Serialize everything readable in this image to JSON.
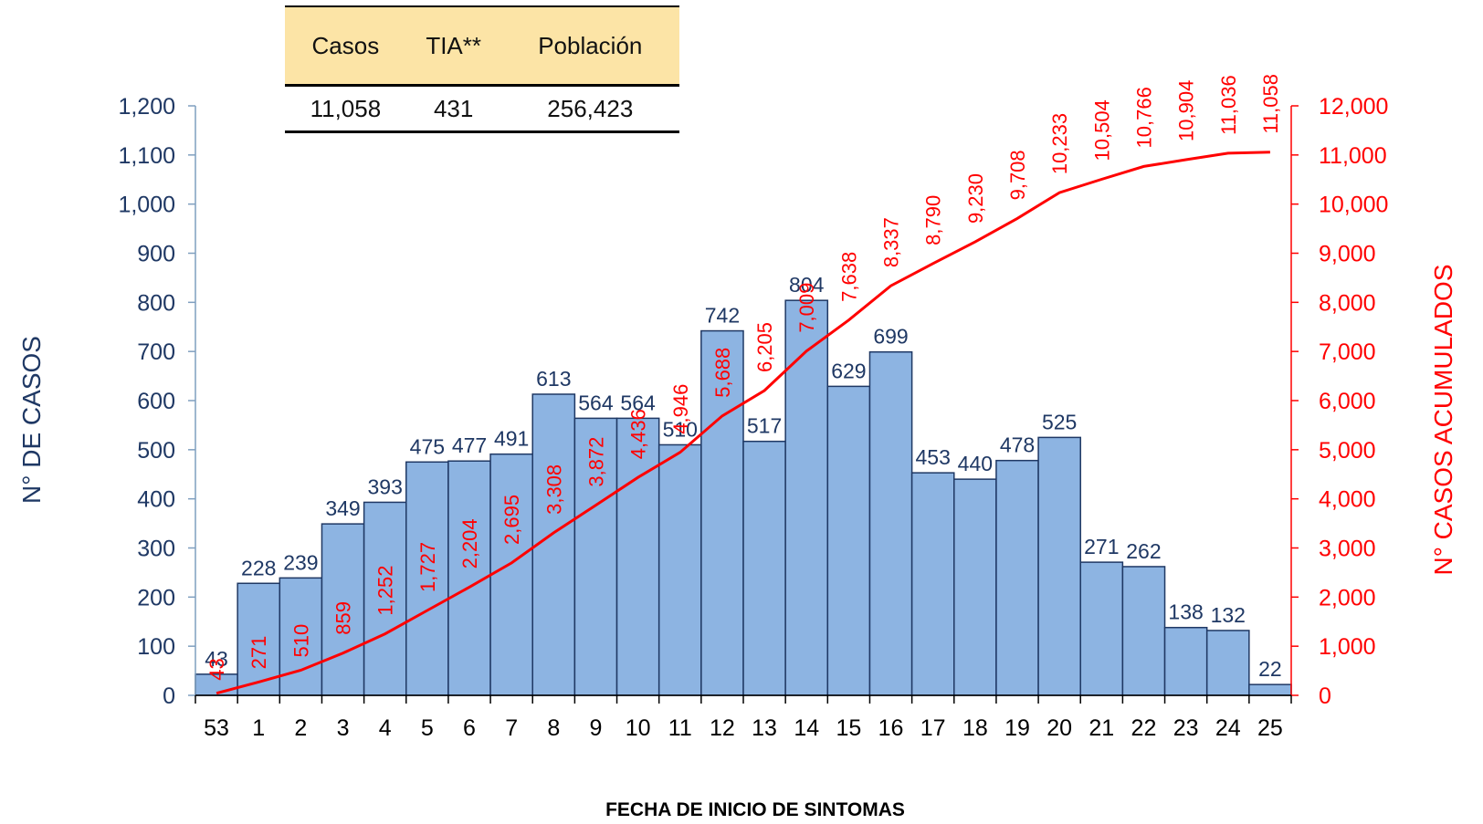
{
  "summary_table": {
    "headers": [
      "Casos",
      "TIA**",
      "Población"
    ],
    "values": [
      "11,058",
      "431",
      "256,423"
    ]
  },
  "colors": {
    "bar_fill": "#8DB4E2",
    "bar_stroke": "#1F3864",
    "cumulative_line": "#FF0000",
    "left_axis_text": "#1F3864",
    "table_header_bg": "#FCE4A6"
  },
  "chart_data": {
    "type": "bar",
    "title": "",
    "xlabel": "FECHA DE INICIO DE SINTOMAS",
    "ylabel": "N° DE CASOS",
    "y2label": "N° CASOS ACUMULADOS",
    "categories": [
      "53",
      "1",
      "2",
      "3",
      "4",
      "5",
      "6",
      "7",
      "8",
      "9",
      "10",
      "11",
      "12",
      "13",
      "14",
      "15",
      "16",
      "17",
      "18",
      "19",
      "20",
      "21",
      "22",
      "23",
      "24",
      "25"
    ],
    "ylim": [
      0,
      1200
    ],
    "yticks": [
      "0",
      "100",
      "200",
      "300",
      "400",
      "500",
      "600",
      "700",
      "800",
      "900",
      "1,000",
      "1,100",
      "1,200"
    ],
    "y2lim": [
      0,
      12000
    ],
    "y2ticks": [
      "0",
      "1,000",
      "2,000",
      "3,000",
      "4,000",
      "5,000",
      "6,000",
      "7,000",
      "8,000",
      "9,000",
      "10,000",
      "11,000",
      "12,000"
    ],
    "series": [
      {
        "axis": "left",
        "kind": "bar",
        "values": [
          43,
          228,
          239,
          349,
          393,
          475,
          477,
          491,
          613,
          564,
          564,
          510,
          742,
          517,
          804,
          629,
          699,
          453,
          440,
          478,
          525,
          271,
          262,
          138,
          132,
          22
        ],
        "labels": [
          "43",
          "228",
          "239",
          "349",
          "393",
          "475",
          "477",
          "491",
          "613",
          "564",
          "564",
          "510",
          "742",
          "517",
          "804",
          "629",
          "699",
          "453",
          "440",
          "478",
          "525",
          "271",
          "262",
          "138",
          "132",
          "22"
        ]
      },
      {
        "axis": "right",
        "kind": "line",
        "values": [
          43,
          271,
          510,
          859,
          1252,
          1727,
          2204,
          2695,
          3308,
          3872,
          4436,
          4946,
          5688,
          6205,
          7009,
          7638,
          8337,
          8790,
          9230,
          9708,
          10233,
          10504,
          10766,
          10904,
          11036,
          11058
        ],
        "labels": [
          "43",
          "271",
          "510",
          "859",
          "1,252",
          "1,727",
          "2,204",
          "2,695",
          "3,308",
          "3,872",
          "4,436",
          "4,946",
          "5,688",
          "6,205",
          "7,009",
          "7,638",
          "8,337",
          "8,790",
          "9,230",
          "9,708",
          "10,233",
          "10,504",
          "10,766",
          "10,904",
          "11,036",
          "11,058"
        ]
      }
    ]
  }
}
